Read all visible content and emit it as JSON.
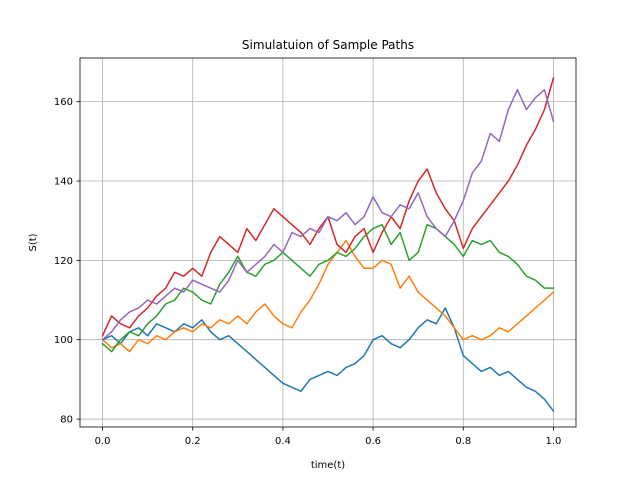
{
  "chart_data": {
    "type": "line",
    "title": "Simulatuion of Sample Paths",
    "xlabel": "time(t)",
    "ylabel": "S(t)",
    "xlim": [
      -0.05,
      1.05
    ],
    "ylim": [
      78,
      171
    ],
    "xticks": [
      0.0,
      0.2,
      0.4,
      0.6,
      0.8,
      1.0
    ],
    "xtick_labels": [
      "0.0",
      "0.2",
      "0.4",
      "0.6",
      "0.8",
      "1.0"
    ],
    "yticks": [
      80,
      100,
      120,
      140,
      160
    ],
    "ytick_labels": [
      "80",
      "100",
      "120",
      "140",
      "160"
    ],
    "grid": true,
    "legend": "none",
    "series": [
      {
        "color": "#1f77b4",
        "x": [
          0.0,
          0.02,
          0.04,
          0.06,
          0.08,
          0.1,
          0.12,
          0.14,
          0.16,
          0.18,
          0.2,
          0.22,
          0.24,
          0.26,
          0.28,
          0.3,
          0.32,
          0.34,
          0.36,
          0.38,
          0.4,
          0.42,
          0.44,
          0.46,
          0.48,
          0.5,
          0.52,
          0.54,
          0.56,
          0.58,
          0.6,
          0.62,
          0.64,
          0.66,
          0.68,
          0.7,
          0.72,
          0.74,
          0.76,
          0.78,
          0.8,
          0.82,
          0.84,
          0.86,
          0.88,
          0.9,
          0.92,
          0.94,
          0.96,
          0.98,
          1.0
        ],
        "y": [
          100,
          101,
          99,
          102,
          103,
          101,
          104,
          103,
          102,
          104,
          103,
          105,
          102,
          100,
          101,
          99,
          97,
          95,
          93,
          91,
          89,
          88,
          87,
          90,
          91,
          92,
          91,
          93,
          94,
          96,
          100,
          101,
          99,
          98,
          100,
          103,
          105,
          104,
          108,
          103,
          96,
          94,
          92,
          93,
          91,
          92,
          90,
          88,
          87,
          85,
          82
        ]
      },
      {
        "color": "#ff7f0e",
        "x": [
          0.0,
          0.02,
          0.04,
          0.06,
          0.08,
          0.1,
          0.12,
          0.14,
          0.16,
          0.18,
          0.2,
          0.22,
          0.24,
          0.26,
          0.28,
          0.3,
          0.32,
          0.34,
          0.36,
          0.38,
          0.4,
          0.42,
          0.44,
          0.46,
          0.48,
          0.5,
          0.52,
          0.54,
          0.56,
          0.58,
          0.6,
          0.62,
          0.64,
          0.66,
          0.68,
          0.7,
          0.72,
          0.74,
          0.76,
          0.78,
          0.8,
          0.82,
          0.84,
          0.86,
          0.88,
          0.9,
          0.92,
          0.94,
          0.96,
          0.98,
          1.0
        ],
        "y": [
          100,
          98,
          99,
          97,
          100,
          99,
          101,
          100,
          102,
          103,
          102,
          104,
          103,
          105,
          104,
          106,
          104,
          107,
          109,
          106,
          104,
          103,
          107,
          110,
          114,
          119,
          122,
          125,
          121,
          118,
          118,
          120,
          119,
          113,
          116,
          112,
          110,
          108,
          106,
          103,
          100,
          101,
          100,
          101,
          103,
          102,
          104,
          106,
          108,
          110,
          112
        ]
      },
      {
        "color": "#2ca02c",
        "x": [
          0.0,
          0.02,
          0.04,
          0.06,
          0.08,
          0.1,
          0.12,
          0.14,
          0.16,
          0.18,
          0.2,
          0.22,
          0.24,
          0.26,
          0.28,
          0.3,
          0.32,
          0.34,
          0.36,
          0.38,
          0.4,
          0.42,
          0.44,
          0.46,
          0.48,
          0.5,
          0.52,
          0.54,
          0.56,
          0.58,
          0.6,
          0.62,
          0.64,
          0.66,
          0.68,
          0.7,
          0.72,
          0.74,
          0.76,
          0.78,
          0.8,
          0.82,
          0.84,
          0.86,
          0.88,
          0.9,
          0.92,
          0.94,
          0.96,
          0.98,
          1.0
        ],
        "y": [
          99,
          97,
          100,
          102,
          101,
          104,
          106,
          109,
          110,
          113,
          112,
          110,
          109,
          114,
          117,
          121,
          117,
          116,
          119,
          120,
          122,
          120,
          118,
          116,
          119,
          120,
          122,
          121,
          123,
          126,
          128,
          129,
          124,
          127,
          120,
          122,
          129,
          128,
          126,
          124,
          121,
          125,
          124,
          125,
          122,
          121,
          119,
          116,
          115,
          113,
          113
        ]
      },
      {
        "color": "#d62728",
        "x": [
          0.0,
          0.02,
          0.04,
          0.06,
          0.08,
          0.1,
          0.12,
          0.14,
          0.16,
          0.18,
          0.2,
          0.22,
          0.24,
          0.26,
          0.28,
          0.3,
          0.32,
          0.34,
          0.36,
          0.38,
          0.4,
          0.42,
          0.44,
          0.46,
          0.48,
          0.5,
          0.52,
          0.54,
          0.56,
          0.58,
          0.6,
          0.62,
          0.64,
          0.66,
          0.68,
          0.7,
          0.72,
          0.74,
          0.76,
          0.78,
          0.8,
          0.82,
          0.84,
          0.86,
          0.88,
          0.9,
          0.92,
          0.94,
          0.96,
          0.98,
          1.0
        ],
        "y": [
          101,
          106,
          104,
          103,
          106,
          108,
          111,
          113,
          117,
          116,
          118,
          116,
          122,
          126,
          124,
          122,
          128,
          125,
          129,
          133,
          131,
          129,
          127,
          124,
          128,
          131,
          124,
          122,
          126,
          128,
          122,
          127,
          131,
          128,
          135,
          140,
          143,
          137,
          133,
          130,
          123,
          128,
          131,
          134,
          137,
          140,
          144,
          149,
          153,
          158,
          166
        ]
      },
      {
        "color": "#9467bd",
        "x": [
          0.0,
          0.02,
          0.04,
          0.06,
          0.08,
          0.1,
          0.12,
          0.14,
          0.16,
          0.18,
          0.2,
          0.22,
          0.24,
          0.26,
          0.28,
          0.3,
          0.32,
          0.34,
          0.36,
          0.38,
          0.4,
          0.42,
          0.44,
          0.46,
          0.48,
          0.5,
          0.52,
          0.54,
          0.56,
          0.58,
          0.6,
          0.62,
          0.64,
          0.66,
          0.68,
          0.7,
          0.72,
          0.74,
          0.76,
          0.78,
          0.8,
          0.82,
          0.84,
          0.86,
          0.88,
          0.9,
          0.92,
          0.94,
          0.96,
          0.98,
          1.0
        ],
        "y": [
          100,
          102,
          105,
          107,
          108,
          110,
          109,
          111,
          113,
          112,
          115,
          114,
          113,
          112,
          115,
          120,
          117,
          119,
          121,
          124,
          122,
          127,
          126,
          128,
          127,
          131,
          130,
          132,
          129,
          131,
          136,
          132,
          131,
          134,
          133,
          137,
          131,
          128,
          126,
          130,
          135,
          142,
          145,
          152,
          150,
          158,
          163,
          158,
          161,
          163,
          155
        ]
      }
    ]
  }
}
